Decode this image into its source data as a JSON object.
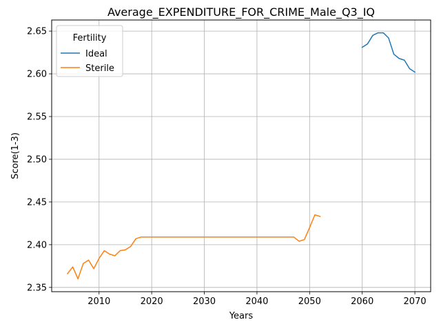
{
  "chart_data": {
    "type": "line",
    "title": "Average_EXPENDITURE_FOR_CRIME_Male_Q3_IQ",
    "xlabel": "Years",
    "ylabel": "Score(1-3)",
    "xlim": [
      2001,
      2073
    ],
    "ylim": [
      2.345,
      2.663
    ],
    "xticks": [
      2010,
      2020,
      2030,
      2040,
      2050,
      2060,
      2070
    ],
    "yticks": [
      2.35,
      2.4,
      2.45,
      2.5,
      2.55,
      2.6,
      2.65
    ],
    "ytick_labels": [
      "2.35",
      "2.40",
      "2.45",
      "2.50",
      "2.55",
      "2.60",
      "2.65"
    ],
    "grid": true,
    "legend": {
      "title": "Fertility",
      "placement": "top-left"
    },
    "series": [
      {
        "name": "Ideal",
        "color": "#1f77b4",
        "x": [
          2060,
          2061,
          2062,
          2063,
          2064,
          2065,
          2066,
          2067,
          2068,
          2069,
          2070
        ],
        "y": [
          2.631,
          2.635,
          2.645,
          2.648,
          2.648,
          2.642,
          2.623,
          2.618,
          2.616,
          2.606,
          2.602
        ]
      },
      {
        "name": "Sterile",
        "color": "#ff7f0e",
        "x": [
          2004,
          2005,
          2006,
          2007,
          2008,
          2009,
          2010,
          2011,
          2012,
          2013,
          2014,
          2015,
          2016,
          2017,
          2018,
          2019,
          2020,
          2021,
          2022,
          2023,
          2024,
          2025,
          2026,
          2027,
          2028,
          2029,
          2030,
          2031,
          2032,
          2033,
          2034,
          2035,
          2036,
          2037,
          2038,
          2039,
          2040,
          2041,
          2042,
          2043,
          2044,
          2045,
          2046,
          2047,
          2048,
          2049,
          2050,
          2051,
          2052
        ],
        "y": [
          2.366,
          2.374,
          2.36,
          2.378,
          2.382,
          2.372,
          2.384,
          2.393,
          2.389,
          2.387,
          2.393,
          2.394,
          2.398,
          2.407,
          2.409,
          2.409,
          2.409,
          2.409,
          2.409,
          2.409,
          2.409,
          2.409,
          2.409,
          2.409,
          2.409,
          2.409,
          2.409,
          2.409,
          2.409,
          2.409,
          2.409,
          2.409,
          2.409,
          2.409,
          2.409,
          2.409,
          2.409,
          2.409,
          2.409,
          2.409,
          2.409,
          2.409,
          2.409,
          2.409,
          2.404,
          2.406,
          2.42,
          2.435,
          2.433
        ]
      }
    ]
  }
}
